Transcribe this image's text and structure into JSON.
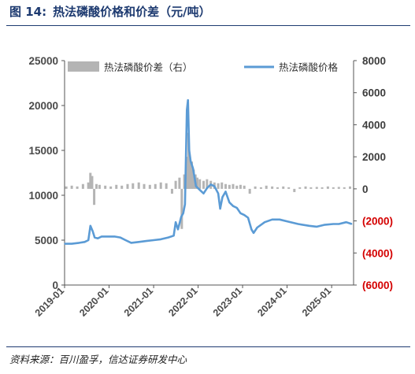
{
  "header": {
    "figure_number": "图 14:",
    "title": "热法磷酸价格和价差（元/吨）"
  },
  "source_text": "资料来源：百川盈孚，信达证券研发中心",
  "colors": {
    "title": "#1d3a70",
    "price_line": "#5b9bd5",
    "spread_bars": "#b4b4b4",
    "negative_ticks": "#d40000"
  },
  "chart_data": {
    "type": "line",
    "x_tick_labels": [
      "2019-01",
      "2020-01",
      "2021-01",
      "2022-01",
      "2023-01",
      "2024-01",
      "2025-01"
    ],
    "x_range": [
      "2019-01-01",
      "2025-06-30"
    ],
    "left_axis": {
      "ylim": [
        0,
        25000
      ],
      "tick_labels": [
        "0",
        "5000",
        "10000",
        "15000",
        "20000",
        "25000"
      ]
    },
    "right_axis": {
      "ylim": [
        -6000,
        8000
      ],
      "tick_labels": [
        "(6000)",
        "(4000)",
        "(2000)",
        "0",
        "2000",
        "4000",
        "6000",
        "8000"
      ],
      "negative_color": "#d40000"
    },
    "legend": {
      "position": "top",
      "items": [
        {
          "label": "热法磷酸价差（右）",
          "kind": "bar",
          "color": "#b4b4b4"
        },
        {
          "label": "热法磷酸价格",
          "kind": "line",
          "color": "#5b9bd5"
        }
      ]
    },
    "series": [
      {
        "name": "热法磷酸价格",
        "axis": "left",
        "kind": "line",
        "points": [
          [
            "2019-01-01",
            4600
          ],
          [
            "2019-03-01",
            4600
          ],
          [
            "2019-05-01",
            4700
          ],
          [
            "2019-06-15",
            4800
          ],
          [
            "2019-07-15",
            5000
          ],
          [
            "2019-08-01",
            6600
          ],
          [
            "2019-08-20",
            6000
          ],
          [
            "2019-09-05",
            5300
          ],
          [
            "2019-10-01",
            5200
          ],
          [
            "2019-11-01",
            5400
          ],
          [
            "2020-01-01",
            5400
          ],
          [
            "2020-02-15",
            5400
          ],
          [
            "2020-04-01",
            5300
          ],
          [
            "2020-05-15",
            5000
          ],
          [
            "2020-07-01",
            4700
          ],
          [
            "2020-09-01",
            4800
          ],
          [
            "2020-11-01",
            4900
          ],
          [
            "2021-01-01",
            5000
          ],
          [
            "2021-03-01",
            5100
          ],
          [
            "2021-05-01",
            5300
          ],
          [
            "2021-06-15",
            5500
          ],
          [
            "2021-07-01",
            7000
          ],
          [
            "2021-07-20",
            6200
          ],
          [
            "2021-08-15",
            7600
          ],
          [
            "2021-09-01",
            8000
          ],
          [
            "2021-09-15",
            9000
          ],
          [
            "2021-10-01",
            19500
          ],
          [
            "2021-10-10",
            20600
          ],
          [
            "2021-10-20",
            15000
          ],
          [
            "2021-11-01",
            13800
          ],
          [
            "2021-11-20",
            13000
          ],
          [
            "2021-12-15",
            11000
          ],
          [
            "2022-01-15",
            10600
          ],
          [
            "2022-02-15",
            10200
          ],
          [
            "2022-03-15",
            10800
          ],
          [
            "2022-04-15",
            11200
          ],
          [
            "2022-05-15",
            11000
          ],
          [
            "2022-06-15",
            10200
          ],
          [
            "2022-07-01",
            8500
          ],
          [
            "2022-07-20",
            9800
          ],
          [
            "2022-08-15",
            10400
          ],
          [
            "2022-09-15",
            9200
          ],
          [
            "2022-10-15",
            8800
          ],
          [
            "2022-11-15",
            8600
          ],
          [
            "2022-12-15",
            8000
          ],
          [
            "2023-01-15",
            7800
          ],
          [
            "2023-02-15",
            7500
          ],
          [
            "2023-03-15",
            6200
          ],
          [
            "2023-04-01",
            5800
          ],
          [
            "2023-05-01",
            6400
          ],
          [
            "2023-07-01",
            7000
          ],
          [
            "2023-09-01",
            7300
          ],
          [
            "2023-11-01",
            7300
          ],
          [
            "2024-01-01",
            7100
          ],
          [
            "2024-04-01",
            6800
          ],
          [
            "2024-07-01",
            6600
          ],
          [
            "2024-09-01",
            6500
          ],
          [
            "2024-11-01",
            6700
          ],
          [
            "2025-01-15",
            6800
          ],
          [
            "2025-03-01",
            6800
          ],
          [
            "2025-05-01",
            7000
          ],
          [
            "2025-06-15",
            6800
          ]
        ]
      },
      {
        "name": "热法磷酸价差（右）",
        "axis": "right",
        "kind": "bar",
        "points": [
          [
            "2019-01-15",
            150
          ],
          [
            "2019-03-01",
            200
          ],
          [
            "2019-04-15",
            150
          ],
          [
            "2019-06-01",
            300
          ],
          [
            "2019-07-15",
            400
          ],
          [
            "2019-08-01",
            1000
          ],
          [
            "2019-08-15",
            800
          ],
          [
            "2019-09-01",
            -1000
          ],
          [
            "2019-09-20",
            300
          ],
          [
            "2019-10-15",
            250
          ],
          [
            "2019-12-01",
            200
          ],
          [
            "2020-01-15",
            150
          ],
          [
            "2020-03-01",
            250
          ],
          [
            "2020-04-15",
            200
          ],
          [
            "2020-06-01",
            300
          ],
          [
            "2020-07-15",
            350
          ],
          [
            "2020-09-01",
            400
          ],
          [
            "2020-10-15",
            300
          ],
          [
            "2020-12-01",
            250
          ],
          [
            "2021-01-15",
            300
          ],
          [
            "2021-03-01",
            400
          ],
          [
            "2021-04-15",
            350
          ],
          [
            "2021-06-01",
            -300
          ],
          [
            "2021-07-01",
            500
          ],
          [
            "2021-08-01",
            700
          ],
          [
            "2021-08-20",
            -2500
          ],
          [
            "2021-09-10",
            900
          ],
          [
            "2021-09-25",
            1000
          ],
          [
            "2021-10-05",
            2000
          ],
          [
            "2021-10-15",
            3500
          ],
          [
            "2021-10-25",
            2000
          ],
          [
            "2021-11-10",
            1700
          ],
          [
            "2021-11-25",
            1200
          ],
          [
            "2021-12-10",
            900
          ],
          [
            "2021-12-25",
            700
          ],
          [
            "2022-01-15",
            600
          ],
          [
            "2022-02-15",
            500
          ],
          [
            "2022-03-15",
            600
          ],
          [
            "2022-04-15",
            500
          ],
          [
            "2022-05-15",
            400
          ],
          [
            "2022-06-15",
            350
          ],
          [
            "2022-07-15",
            400
          ],
          [
            "2022-08-15",
            300
          ],
          [
            "2022-09-15",
            250
          ],
          [
            "2022-10-15",
            300
          ],
          [
            "2022-11-15",
            200
          ],
          [
            "2022-12-15",
            250
          ],
          [
            "2023-01-15",
            200
          ],
          [
            "2023-03-01",
            -300
          ],
          [
            "2023-04-15",
            150
          ],
          [
            "2023-06-01",
            100
          ],
          [
            "2023-07-15",
            200
          ],
          [
            "2023-09-01",
            150
          ],
          [
            "2023-10-15",
            100
          ],
          [
            "2023-12-01",
            150
          ],
          [
            "2024-01-15",
            100
          ],
          [
            "2024-03-01",
            -200
          ],
          [
            "2024-04-15",
            100
          ],
          [
            "2024-06-01",
            150
          ],
          [
            "2024-07-15",
            100
          ],
          [
            "2024-09-01",
            120
          ],
          [
            "2024-10-15",
            100
          ],
          [
            "2024-12-01",
            150
          ],
          [
            "2025-01-15",
            100
          ],
          [
            "2025-03-01",
            120
          ],
          [
            "2025-04-15",
            100
          ],
          [
            "2025-06-01",
            150
          ]
        ]
      }
    ]
  }
}
